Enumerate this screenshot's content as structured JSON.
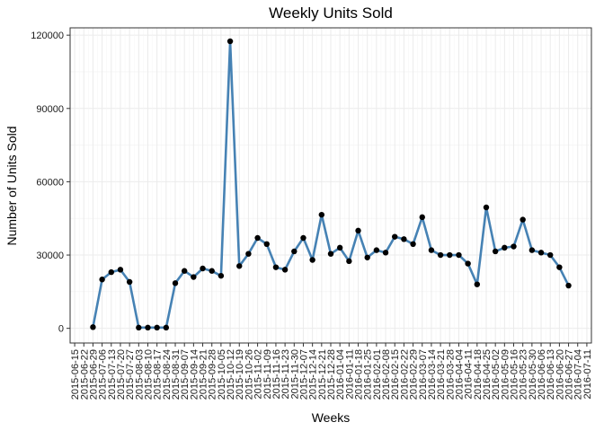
{
  "chart_data": {
    "type": "line",
    "title": "Weekly Units Sold",
    "xlabel": "Weeks",
    "ylabel": "Number of Units Sold",
    "ylim": [
      -6000,
      123000
    ],
    "yticks": [
      0,
      30000,
      60000,
      90000,
      120000
    ],
    "grid": true,
    "legend": "none",
    "line_color": "#4682b4",
    "point_color": "#000000",
    "categories": [
      "2015-06-15",
      "2015-06-22",
      "2015-06-29",
      "2015-07-06",
      "2015-07-13",
      "2015-07-20",
      "2015-07-27",
      "2015-08-03",
      "2015-08-10",
      "2015-08-17",
      "2015-08-24",
      "2015-08-31",
      "2015-09-07",
      "2015-09-14",
      "2015-09-21",
      "2015-09-28",
      "2015-10-05",
      "2015-10-12",
      "2015-10-19",
      "2015-10-26",
      "2015-11-02",
      "2015-11-09",
      "2015-11-16",
      "2015-11-23",
      "2015-11-30",
      "2015-12-07",
      "2015-12-14",
      "2015-12-21",
      "2015-12-28",
      "2016-01-04",
      "2016-01-11",
      "2016-01-18",
      "2016-01-25",
      "2016-02-01",
      "2016-02-08",
      "2016-02-15",
      "2016-02-22",
      "2016-02-29",
      "2016-03-07",
      "2016-03-14",
      "2016-03-21",
      "2016-03-28",
      "2016-04-04",
      "2016-04-11",
      "2016-04-18",
      "2016-04-25",
      "2016-05-02",
      "2016-05-09",
      "2016-05-16",
      "2016-05-23",
      "2016-05-30",
      "2016-06-06",
      "2016-06-13",
      "2016-06-20",
      "2016-06-27",
      "2016-07-04",
      "2016-07-11"
    ],
    "series": [
      {
        "values": [
          null,
          null,
          500,
          20000,
          23000,
          24000,
          19000,
          300,
          300,
          300,
          300,
          18500,
          23500,
          21000,
          24500,
          23500,
          21500,
          117500,
          25500,
          30500,
          37000,
          34500,
          25000,
          24000,
          31500,
          37000,
          28000,
          46500,
          30500,
          33000,
          27500,
          40000,
          29000,
          32000,
          31000,
          37500,
          36500,
          34500,
          45500,
          32000,
          30000,
          30000,
          30000,
          26500,
          18000,
          49500,
          31500,
          33000,
          33500,
          44500,
          32000,
          31000,
          30000,
          25000,
          17500,
          null,
          null
        ]
      }
    ]
  }
}
